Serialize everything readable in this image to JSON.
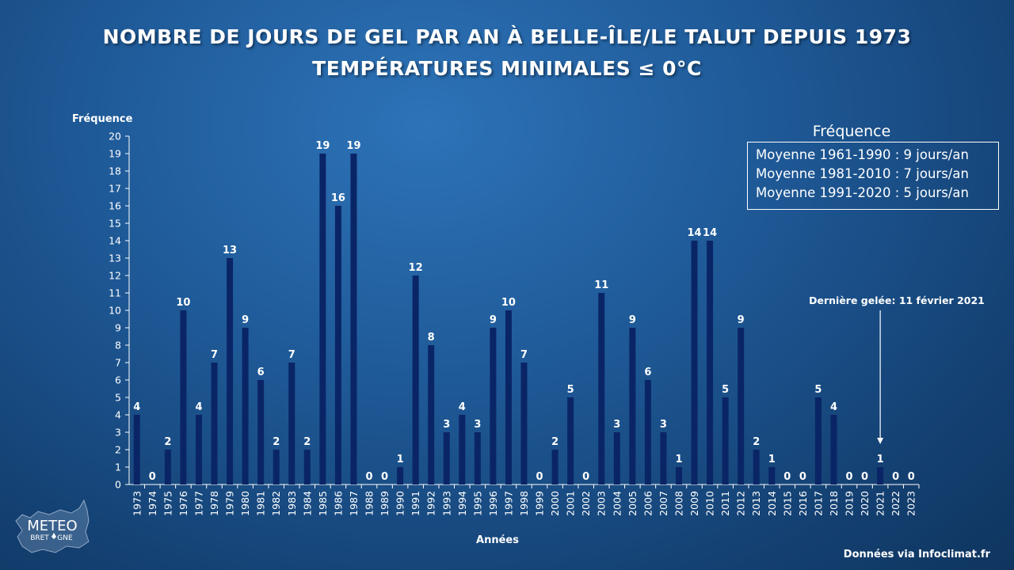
{
  "chart_data": {
    "type": "bar",
    "title": "NOMBRE DE JOURS DE GEL PAR AN À BELLE-ÎLE/LE TALUT DEPUIS 1973",
    "subtitle": "TEMPÉRATURES MINIMALES ≤ 0°C",
    "xlabel": "Années",
    "ylabel": "Fréquence",
    "ylim": [
      0,
      20
    ],
    "yticks": [
      0,
      1,
      2,
      3,
      4,
      5,
      6,
      7,
      8,
      9,
      10,
      11,
      12,
      13,
      14,
      15,
      16,
      17,
      18,
      19,
      20
    ],
    "grid": false,
    "categories": [
      "1973",
      "1974",
      "1975",
      "1976",
      "1977",
      "1978",
      "1979",
      "1980",
      "1981",
      "1982",
      "1983",
      "1984",
      "1985",
      "1986",
      "1987",
      "1988",
      "1989",
      "1990",
      "1991",
      "1992",
      "1993",
      "1994",
      "1995",
      "1996",
      "1997",
      "1998",
      "1999",
      "2000",
      "2001",
      "2002",
      "2003",
      "2004",
      "2005",
      "2006",
      "2007",
      "2008",
      "2009",
      "2010",
      "2011",
      "2012",
      "2013",
      "2014",
      "2015",
      "2016",
      "2017",
      "2018",
      "2019",
      "2020",
      "2021",
      "2022",
      "2023"
    ],
    "values": [
      4,
      0,
      2,
      10,
      4,
      7,
      13,
      9,
      6,
      2,
      7,
      2,
      19,
      16,
      19,
      0,
      0,
      1,
      12,
      8,
      3,
      4,
      3,
      9,
      10,
      7,
      0,
      2,
      5,
      0,
      11,
      3,
      9,
      6,
      3,
      1,
      14,
      14,
      5,
      9,
      2,
      1,
      0,
      0,
      5,
      4,
      0,
      0,
      1,
      0,
      0
    ],
    "bar_color": "#0a2566",
    "legend": {
      "title": "Fréquence",
      "entries": [
        "Moyenne  1961-1990 : 9 jours/an",
        "Moyenne  1981-2010 : 7 jours/an",
        "Moyenne  1991-2020 : 5 jours/an"
      ],
      "placement": "top-right"
    },
    "annotation": {
      "text": "Dernière gelée: 11 février 2021",
      "category": "2021"
    }
  },
  "source": "Données via Infoclimat.fr",
  "logo": {
    "text_top": "METEO",
    "text_bottom": "BRET",
    "text_bottom_end": "GNE"
  }
}
